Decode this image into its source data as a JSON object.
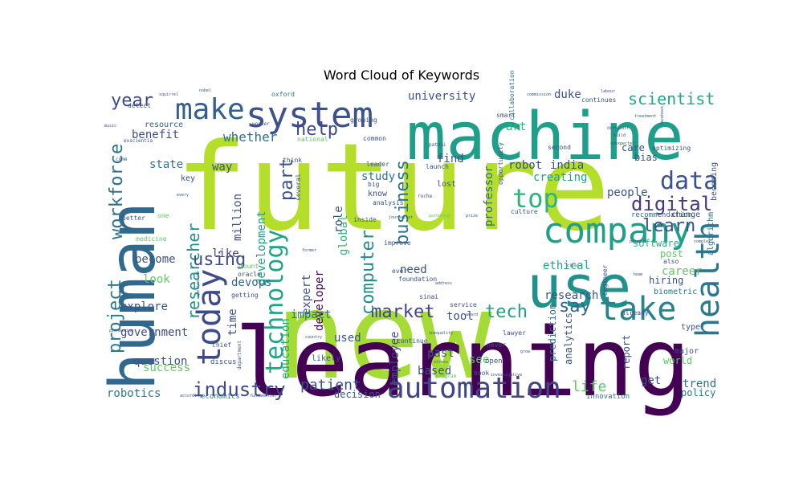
{
  "chart_data": {
    "type": "wordcloud",
    "title": "Word Cloud of Keywords",
    "words": [
      {
        "text": "future",
        "color": "#b5de2b"
      },
      {
        "text": "new",
        "color": "#a5db36"
      },
      {
        "text": "learning",
        "color": "#440154"
      },
      {
        "text": "machine",
        "color": "#1f9e89"
      },
      {
        "text": "human",
        "color": "#31688e"
      },
      {
        "text": "use",
        "color": "#21918c"
      },
      {
        "text": "system",
        "color": "#3b528b"
      },
      {
        "text": "company",
        "color": "#1f9e89"
      },
      {
        "text": "today",
        "color": "#3e4a89"
      },
      {
        "text": "take",
        "color": "#26828e"
      },
      {
        "text": "automation",
        "color": "#414487"
      },
      {
        "text": "health",
        "color": "#2a788e"
      },
      {
        "text": "make",
        "color": "#355f8d"
      },
      {
        "text": "top",
        "color": "#2db27d"
      },
      {
        "text": "technology",
        "color": "#20a386"
      },
      {
        "text": "data",
        "color": "#3b528b"
      },
      {
        "text": "industry",
        "color": "#3e4a89"
      },
      {
        "text": "digital",
        "color": "#443983"
      },
      {
        "text": "workforce",
        "color": "#2c728e"
      },
      {
        "text": "project",
        "color": "#2a788e"
      },
      {
        "text": "market",
        "color": "#414487"
      },
      {
        "text": "computer",
        "color": "#228c8d"
      },
      {
        "text": "business",
        "color": "#2c728e"
      },
      {
        "text": "researcher",
        "color": "#21918c"
      },
      {
        "text": "learn",
        "color": "#3b528b"
      },
      {
        "text": "using",
        "color": "#3e4a89"
      },
      {
        "text": "part",
        "color": "#3b528b"
      },
      {
        "text": "help",
        "color": "#404688"
      },
      {
        "text": "scientist",
        "color": "#22a884"
      },
      {
        "text": "tech",
        "color": "#20a386"
      },
      {
        "text": "year",
        "color": "#3e4a89"
      },
      {
        "text": "say",
        "color": "#31688e"
      },
      {
        "text": "life",
        "color": "#5ec962"
      },
      {
        "text": "patient",
        "color": "#3b528b"
      },
      {
        "text": "university",
        "color": "#3b528b"
      },
      {
        "text": "whether",
        "color": "#2c728e"
      },
      {
        "text": "development",
        "color": "#1f9e89"
      },
      {
        "text": "education",
        "color": "#22a884"
      },
      {
        "text": "developer",
        "color": "#440154"
      },
      {
        "text": "expert",
        "color": "#3b528b"
      },
      {
        "text": "professor",
        "color": "#31688e"
      },
      {
        "text": "employee",
        "color": "#3e4a89"
      },
      {
        "text": "global",
        "color": "#35b779"
      },
      {
        "text": "robotics",
        "color": "#2a788e"
      },
      {
        "text": "government",
        "color": "#3e4a89"
      },
      {
        "text": "explore",
        "color": "#3b528b"
      },
      {
        "text": "question",
        "color": "#3b528b"
      },
      {
        "text": "success",
        "color": "#5ec962"
      },
      {
        "text": "benefit",
        "color": "#3e4a89"
      },
      {
        "text": "resource",
        "color": "#355f8d"
      },
      {
        "text": "state",
        "color": "#2c728e"
      },
      {
        "text": "way",
        "color": "#3b528b"
      },
      {
        "text": "like",
        "color": "#433e85"
      },
      {
        "text": "look",
        "color": "#5ec962"
      },
      {
        "text": "become",
        "color": "#3b528b"
      },
      {
        "text": "million",
        "color": "#3b528b"
      },
      {
        "text": "devops",
        "color": "#31688e"
      },
      {
        "text": "impact",
        "color": "#2c728e"
      },
      {
        "text": "time",
        "color": "#3b528b"
      },
      {
        "text": "need",
        "color": "#3b528b"
      },
      {
        "text": "tool",
        "color": "#3b528b"
      },
      {
        "text": "used",
        "color": "#3b528b"
      },
      {
        "text": "past",
        "color": "#3b528b"
      },
      {
        "text": "based",
        "color": "#3b528b"
      },
      {
        "text": "see",
        "color": "#5ec962"
      },
      {
        "text": "robot",
        "color": "#3b528b"
      },
      {
        "text": "duke",
        "color": "#3b528b"
      },
      {
        "text": "art",
        "color": "#2db27d"
      },
      {
        "text": "find",
        "color": "#3b528b"
      },
      {
        "text": "study",
        "color": "#2c728e"
      },
      {
        "text": "india",
        "color": "#3b528b"
      },
      {
        "text": "creating",
        "color": "#20a386"
      },
      {
        "text": "people",
        "color": "#3b528b"
      },
      {
        "text": "ethical",
        "color": "#20a386"
      },
      {
        "text": "research",
        "color": "#3b528b"
      },
      {
        "text": "software",
        "color": "#2db27d"
      },
      {
        "text": "career",
        "color": "#5ec962"
      },
      {
        "text": "post",
        "color": "#5ec962"
      },
      {
        "text": "hiring",
        "color": "#3b528b"
      },
      {
        "text": "biometric",
        "color": "#2a788e"
      },
      {
        "text": "report",
        "color": "#3b528b"
      },
      {
        "text": "world",
        "color": "#5ec962"
      },
      {
        "text": "trend",
        "color": "#2c728e"
      },
      {
        "text": "get",
        "color": "#3b528b"
      },
      {
        "text": "policy",
        "color": "#2a788e"
      },
      {
        "text": "innovation",
        "color": "#2a788e"
      },
      {
        "text": "analytics",
        "color": "#3b528b"
      },
      {
        "text": "prediction",
        "color": "#2c728e"
      },
      {
        "text": "decision",
        "color": "#3b528b"
      },
      {
        "text": "economics",
        "color": "#2a788e"
      },
      {
        "text": "care",
        "color": "#3b528b"
      },
      {
        "text": "bias",
        "color": "#3b528b"
      },
      {
        "text": "recommendation",
        "color": "#2c728e"
      },
      {
        "text": "change",
        "color": "#3b528b"
      },
      {
        "text": "algorithm",
        "color": "#2c728e"
      },
      {
        "text": "becoming",
        "color": "#3b528b"
      },
      {
        "text": "optimizing",
        "color": "#3b528b"
      },
      {
        "text": "continues",
        "color": "#3b528b"
      },
      {
        "text": "second",
        "color": "#3b528b"
      },
      {
        "text": "culture",
        "color": "#3b528b"
      },
      {
        "text": "lost",
        "color": "#3b528b"
      },
      {
        "text": "launch",
        "color": "#3b528b"
      },
      {
        "text": "know",
        "color": "#3b528b"
      },
      {
        "text": "analysis",
        "color": "#3b528b"
      },
      {
        "text": "inside",
        "color": "#3b528b"
      },
      {
        "text": "improve",
        "color": "#3b528b"
      },
      {
        "text": "foundation",
        "color": "#3b528b"
      },
      {
        "text": "ever",
        "color": "#3b528b"
      },
      {
        "text": "role",
        "color": "#3b528b"
      },
      {
        "text": "oxford",
        "color": "#2c728e"
      },
      {
        "text": "worker",
        "color": "#3b528b"
      },
      {
        "text": "growing",
        "color": "#3b528b"
      },
      {
        "text": "national",
        "color": "#5ec962"
      },
      {
        "text": "common",
        "color": "#3b528b"
      },
      {
        "text": "leader",
        "color": "#3b528b"
      },
      {
        "text": "think",
        "color": "#3b528b"
      },
      {
        "text": "several",
        "color": "#3b528b"
      },
      {
        "text": "mount",
        "color": "#5ec962"
      },
      {
        "text": "oracle",
        "color": "#3b528b"
      },
      {
        "text": "getting",
        "color": "#3b528b"
      },
      {
        "text": "discus",
        "color": "#3b528b"
      },
      {
        "text": "likely",
        "color": "#3b528b"
      },
      {
        "text": "continue",
        "color": "#3b528b"
      },
      {
        "text": "never",
        "color": "#3b528b"
      },
      {
        "text": "open",
        "color": "#3b528b"
      },
      {
        "text": "book",
        "color": "#3b528b"
      },
      {
        "text": "lawyer",
        "color": "#3b528b"
      },
      {
        "text": "service",
        "color": "#3b528b"
      },
      {
        "text": "sinai",
        "color": "#3b528b"
      },
      {
        "text": "smart",
        "color": "#3b528b"
      },
      {
        "text": "collaboration",
        "color": "#2c728e"
      },
      {
        "text": "opportunity",
        "color": "#3b528b"
      },
      {
        "text": "engineer",
        "color": "#3b528b"
      },
      {
        "text": "already",
        "color": "#3b528b"
      },
      {
        "text": "type",
        "color": "#3b528b"
      },
      {
        "text": "major",
        "color": "#3b528b"
      },
      {
        "text": "also",
        "color": "#3b528b"
      },
      {
        "text": "detect",
        "color": "#3b528b"
      },
      {
        "text": "key",
        "color": "#3b528b"
      },
      {
        "text": "one",
        "color": "#5ec962"
      },
      {
        "text": "better",
        "color": "#3b528b"
      },
      {
        "text": "medicine",
        "color": "#5ec962"
      },
      {
        "text": "department",
        "color": "#3b528b"
      },
      {
        "text": "chief",
        "color": "#3b528b"
      },
      {
        "text": "pathai",
        "color": "#3b528b"
      },
      {
        "text": "journalist",
        "color": "#3b528b"
      },
      {
        "text": "roche",
        "color": "#3b528b"
      },
      {
        "text": "pathology",
        "color": "#5ec962"
      },
      {
        "text": "big",
        "color": "#3b528b"
      },
      {
        "text": "prize",
        "color": "#3b528b"
      },
      {
        "text": "labour",
        "color": "#3b528b"
      },
      {
        "text": "nobel",
        "color": "#3b528b"
      },
      {
        "text": "music",
        "color": "#3b528b"
      },
      {
        "text": "exscientia",
        "color": "#3b528b"
      },
      {
        "text": "come",
        "color": "#3b528b"
      },
      {
        "text": "application",
        "color": "#3b528b"
      },
      {
        "text": "investigative",
        "color": "#3b528b"
      },
      {
        "text": "treatment",
        "color": "#3b528b"
      },
      {
        "text": "build",
        "color": "#3b528b"
      },
      {
        "text": "unexpected",
        "color": "#3b528b"
      },
      {
        "text": "difficult",
        "color": "#3b528b"
      },
      {
        "text": "pioneering",
        "color": "#3b528b"
      },
      {
        "text": "address",
        "color": "#3b528b"
      },
      {
        "text": "former",
        "color": "#3b528b"
      },
      {
        "text": "fundamental",
        "color": "#3b528b"
      },
      {
        "text": "according",
        "color": "#3b528b"
      },
      {
        "text": "country",
        "color": "#3b528b"
      },
      {
        "text": "award",
        "color": "#3b528b"
      },
      {
        "text": "inequality",
        "color": "#3b528b"
      },
      {
        "text": "program",
        "color": "#5ec962"
      },
      {
        "text": "stress",
        "color": "#3b528b"
      },
      {
        "text": "grow",
        "color": "#3b528b"
      },
      {
        "text": "commission",
        "color": "#3b528b"
      },
      {
        "text": "percent",
        "color": "#3b528b"
      },
      {
        "text": "team",
        "color": "#3b528b"
      },
      {
        "text": "clear",
        "color": "#3b528b"
      },
      {
        "text": "complex",
        "color": "#3b528b"
      },
      {
        "text": "squirrel",
        "color": "#3b528b"
      },
      {
        "text": "every",
        "color": "#3b528b"
      },
      {
        "text": "facebook",
        "color": "#3b528b"
      }
    ]
  }
}
